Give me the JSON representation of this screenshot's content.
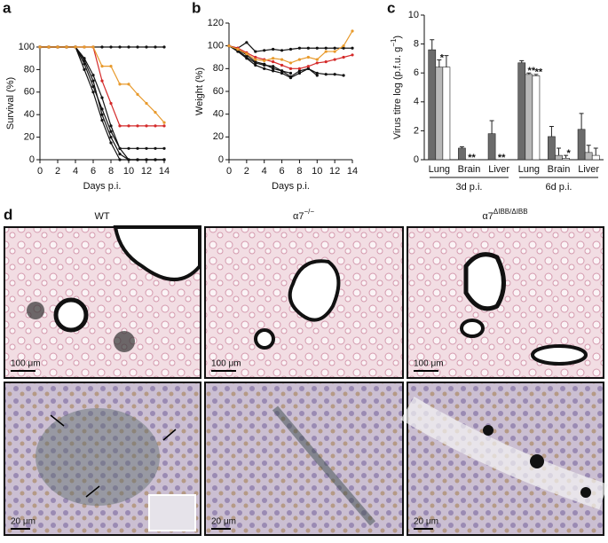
{
  "chart_data": [
    {
      "type": "line",
      "panel_label": "a",
      "xlabel": "Days p.i.",
      "ylabel": "Survival (%)",
      "x": [
        0,
        1,
        2,
        3,
        4,
        5,
        6,
        7,
        8,
        9,
        10,
        11,
        12,
        13,
        14
      ],
      "xlim": [
        0,
        14
      ],
      "xticks": [
        0,
        2,
        4,
        6,
        8,
        10,
        12,
        14
      ],
      "ylim": [
        0,
        100
      ],
      "yticks": [
        0,
        20,
        40,
        60,
        80,
        100
      ],
      "series": [
        {
          "color": "#111111",
          "values": [
            100,
            100,
            100,
            100,
            100,
            100,
            100,
            100,
            100,
            100,
            100,
            100,
            100,
            100,
            100
          ]
        },
        {
          "color": "#111111",
          "values": [
            100,
            100,
            100,
            100,
            100,
            90,
            75,
            55,
            30,
            10,
            10,
            10,
            10,
            10,
            10
          ]
        },
        {
          "color": "#111111",
          "values": [
            100,
            100,
            100,
            100,
            100,
            85,
            65,
            45,
            25,
            10,
            0,
            0,
            0,
            0,
            0
          ]
        },
        {
          "color": "#111111",
          "values": [
            100,
            100,
            100,
            100,
            100,
            88,
            70,
            40,
            20,
            5,
            0,
            0,
            0,
            0,
            0
          ]
        },
        {
          "color": "#111111",
          "values": [
            100,
            100,
            100,
            100,
            100,
            80,
            60,
            35,
            15,
            0,
            0,
            0,
            0,
            0,
            0
          ]
        },
        {
          "color": "#d42a2a",
          "values": [
            100,
            100,
            100,
            100,
            100,
            100,
            100,
            70,
            50,
            30,
            30,
            30,
            30,
            30,
            30
          ]
        },
        {
          "color": "#e89a2c",
          "values": [
            100,
            100,
            100,
            100,
            100,
            100,
            100,
            83,
            83,
            67,
            67,
            58,
            50,
            42,
            33
          ]
        }
      ]
    },
    {
      "type": "line",
      "panel_label": "b",
      "xlabel": "Days p.i.",
      "ylabel": "Weight (%)",
      "x": [
        0,
        1,
        2,
        3,
        4,
        5,
        6,
        7,
        8,
        9,
        10,
        11,
        12,
        13,
        14
      ],
      "xlim": [
        0,
        14
      ],
      "xticks": [
        0,
        2,
        4,
        6,
        8,
        10,
        12,
        14
      ],
      "ylim": [
        0,
        120
      ],
      "yticks": [
        0,
        20,
        40,
        60,
        80,
        100,
        120
      ],
      "series": [
        {
          "color": "#111111",
          "values": [
            100,
            98,
            103,
            95,
            96,
            97,
            96,
            97,
            98,
            98,
            98,
            98,
            98,
            98,
            98
          ]
        },
        {
          "color": "#111111",
          "values": [
            100,
            97,
            92,
            86,
            84,
            80,
            78,
            76,
            null,
            null,
            null,
            null,
            null,
            null,
            null
          ]
        },
        {
          "color": "#111111",
          "values": [
            100,
            96,
            90,
            85,
            83,
            82,
            78,
            73,
            78,
            80,
            76,
            75,
            75,
            74,
            null
          ]
        },
        {
          "color": "#111111",
          "values": [
            100,
            95,
            89,
            83,
            80,
            78,
            76,
            72,
            76,
            80,
            74,
            null,
            null,
            null,
            null
          ]
        },
        {
          "color": "#d42a2a",
          "values": [
            100,
            98,
            94,
            90,
            88,
            86,
            83,
            80,
            80,
            82,
            85,
            86,
            88,
            90,
            92
          ]
        },
        {
          "color": "#e89a2c",
          "values": [
            100,
            97,
            93,
            88,
            87,
            89,
            88,
            85,
            88,
            90,
            88,
            95,
            95,
            100,
            113
          ]
        }
      ]
    },
    {
      "type": "bar",
      "panel_label": "c",
      "ylabel": [
        "Virus titre log (p.f.u. g",
        "−1",
        ")"
      ],
      "categories": [
        "Lung",
        "Brain",
        "Liver",
        "Lung",
        "Brain",
        "Liver"
      ],
      "category_groups": [
        "3d p.i.",
        "6d p.i."
      ],
      "ylim": [
        0,
        10
      ],
      "yticks": [
        0,
        2,
        4,
        6,
        8,
        10
      ],
      "series": [
        {
          "color": "#6b6b6b",
          "values": [
            7.6,
            0.8,
            1.8,
            6.7,
            1.6,
            2.1
          ],
          "errors": [
            0.7,
            0.1,
            0.9,
            0.15,
            0.7,
            1.1
          ],
          "significance": [
            null,
            null,
            null,
            null,
            null,
            null
          ]
        },
        {
          "color": "#b8b8b8",
          "values": [
            6.4,
            0,
            0,
            5.9,
            0.3,
            0.5
          ],
          "errors": [
            0.5,
            0,
            0,
            0.1,
            0.5,
            0.5
          ],
          "significance": [
            "*",
            "**",
            "**",
            "**",
            null,
            null
          ]
        },
        {
          "color": "#ffffff",
          "values": [
            6.4,
            0,
            0,
            5.8,
            0.1,
            0.3
          ],
          "errors": [
            0.8,
            0,
            0,
            0.1,
            0.2,
            0.5
          ],
          "significance": [
            null,
            null,
            null,
            "**",
            "*",
            null
          ]
        }
      ]
    }
  ],
  "panel_d": {
    "label": "d",
    "columns": [
      {
        "label": [
          "WT",
          ""
        ]
      },
      {
        "label": [
          "α7",
          "−/−"
        ]
      },
      {
        "label": [
          "α7",
          "ΔIBB/ΔIBB"
        ]
      }
    ],
    "scale_bars": [
      "100 μm",
      "20 μm"
    ]
  }
}
